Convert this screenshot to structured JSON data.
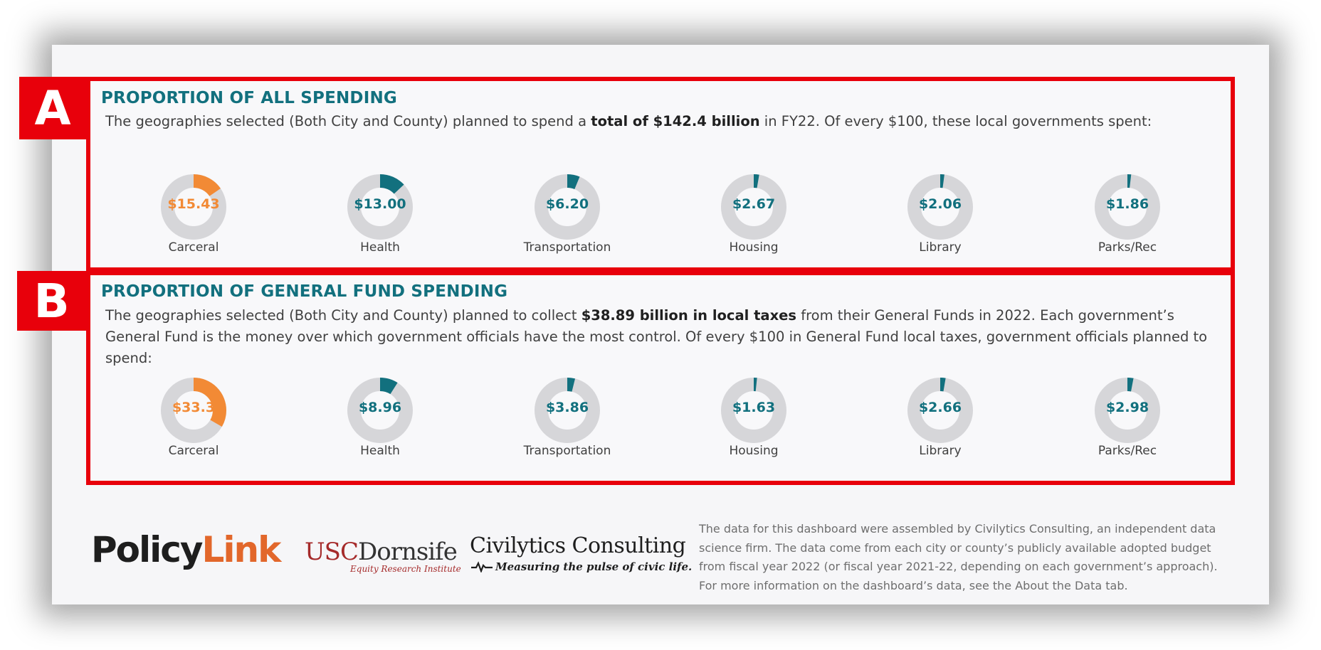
{
  "badges": {
    "a": "A",
    "b": "B"
  },
  "section_a": {
    "title": "PROPORTION OF ALL SPENDING",
    "desc_pre": "The geographies selected (Both City and County) planned to spend a ",
    "desc_bold": "total of $142.4 billion",
    "desc_post": " in FY22. Of every $100, these local governments spent:"
  },
  "section_b": {
    "title": "PROPORTION OF GENERAL FUND SPENDING",
    "desc_pre": "The geographies selected (Both City and County) planned to collect ",
    "desc_bold": "$38.89 billion in local taxes",
    "desc_post": " from their General Funds in 2022. Each government’s General Fund is the money over which government officials have the most control. Of every $100 in General Fund local taxes, government officials planned to spend:"
  },
  "colors": {
    "highlight": "#f28a35",
    "standard": "#12707e",
    "track": "#d6d6d9",
    "badge": "#e8000b"
  },
  "chart_data": [
    {
      "type": "pie",
      "title": "PROPORTION OF ALL SPENDING",
      "categories": [
        "Carceral",
        "Health",
        "Transportation",
        "Housing",
        "Library",
        "Parks/Rec"
      ],
      "values": [
        15.43,
        13.0,
        6.2,
        2.67,
        2.06,
        1.86
      ],
      "labels": [
        "$15.43",
        "$13.00",
        "$6.20",
        "$2.67",
        "$2.06",
        "$1.86"
      ],
      "total": 100,
      "highlighted": [
        0
      ]
    },
    {
      "type": "pie",
      "title": "PROPORTION OF GENERAL FUND SPENDING",
      "categories": [
        "Carceral",
        "Health",
        "Transportation",
        "Housing",
        "Library",
        "Parks/Rec"
      ],
      "values": [
        33.3,
        8.96,
        3.86,
        1.63,
        2.66,
        2.98
      ],
      "labels": [
        "$33.3",
        "$8.96",
        "$3.86",
        "$1.63",
        "$2.66",
        "$2.98"
      ],
      "total": 100,
      "highlighted": [
        0
      ]
    }
  ],
  "logos": {
    "policylink_policy": "Policy",
    "policylink_link": "Link",
    "usc_usc": "USC",
    "usc_dornsife": "Dornsife",
    "usc_sub": "Equity Research Institute",
    "civilytics_name": "Civilytics Consulting",
    "civilytics_tagline": "Measuring the pulse of civic life."
  },
  "footer": {
    "note": "The data for this dashboard were assembled by Civilytics Consulting, an independent data science firm. The data come from each city or county’s publicly available adopted budget from fiscal year 2022 (or fiscal year 2021-22, depending on each government’s approach). For more information on the dashboard’s data, see the About the Data tab."
  }
}
